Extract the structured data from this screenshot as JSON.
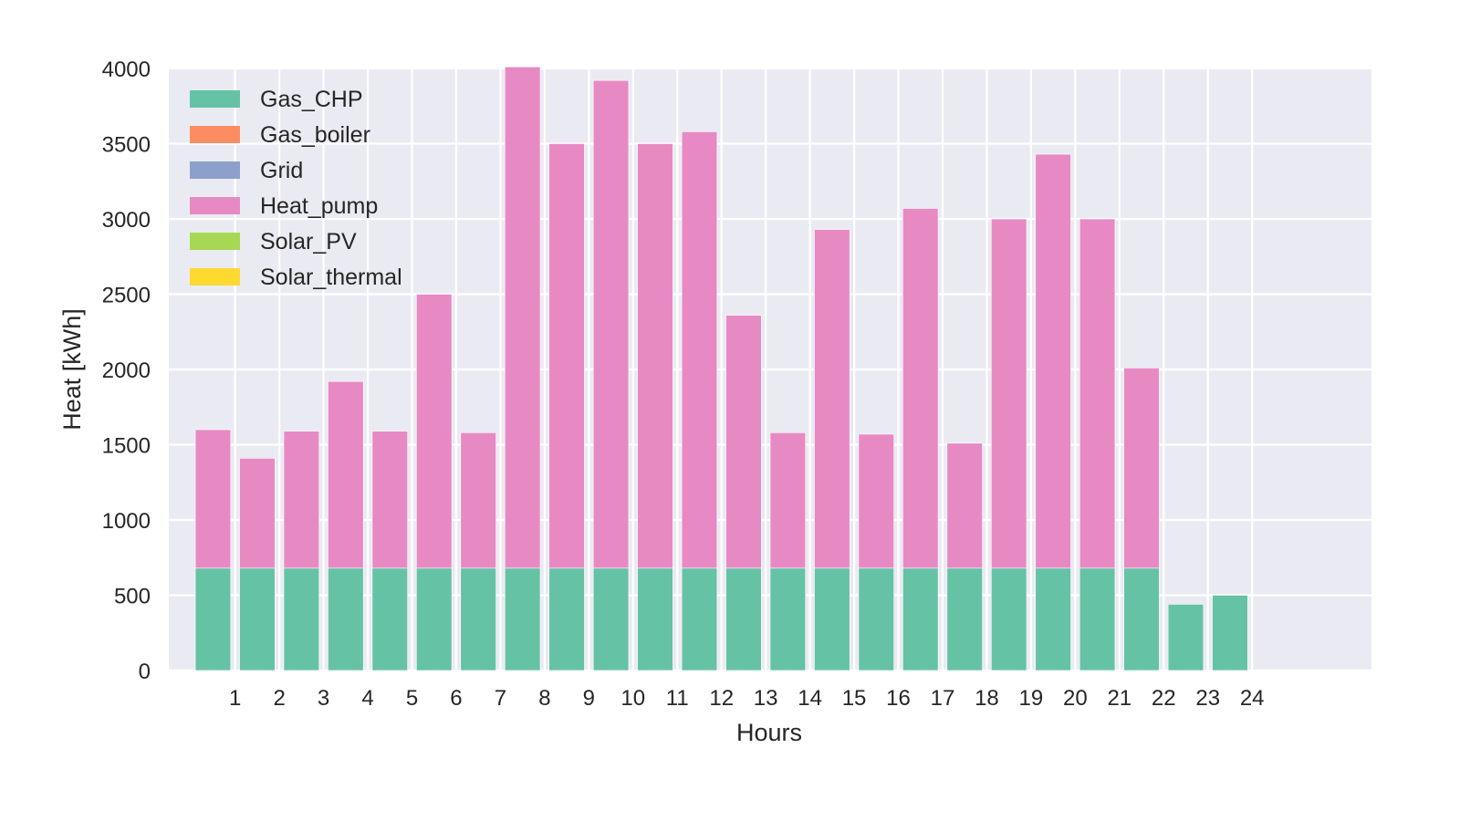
{
  "chart_data": {
    "type": "bar",
    "stacked": true,
    "xlabel": "Hours",
    "ylabel": "Heat [kWh]",
    "categories": [
      "1",
      "2",
      "3",
      "4",
      "5",
      "6",
      "7",
      "8",
      "9",
      "10",
      "11",
      "12",
      "13",
      "14",
      "15",
      "16",
      "17",
      "18",
      "19",
      "20",
      "21",
      "22",
      "23",
      "24"
    ],
    "ylim": [
      0,
      4000
    ],
    "yticks": [
      0,
      500,
      1000,
      1500,
      2000,
      2500,
      3000,
      3500,
      4000
    ],
    "grid": true,
    "background": "#eaeaf2",
    "legend_position": "top-left",
    "series": [
      {
        "name": "Gas_CHP",
        "color": "#66c2a5",
        "values": [
          680,
          680,
          680,
          680,
          680,
          680,
          680,
          680,
          680,
          680,
          680,
          680,
          680,
          680,
          680,
          680,
          680,
          680,
          680,
          680,
          680,
          680,
          440,
          500
        ]
      },
      {
        "name": "Gas_boiler",
        "color": "#fc8d62",
        "values": [
          0,
          0,
          0,
          0,
          0,
          0,
          0,
          0,
          0,
          0,
          0,
          0,
          0,
          0,
          0,
          0,
          0,
          0,
          0,
          0,
          0,
          0,
          0,
          0
        ]
      },
      {
        "name": "Grid",
        "color": "#8da0cb",
        "values": [
          0,
          0,
          0,
          0,
          0,
          0,
          0,
          0,
          0,
          0,
          0,
          0,
          0,
          0,
          0,
          0,
          0,
          0,
          0,
          0,
          0,
          0,
          0,
          0
        ]
      },
      {
        "name": "Heat_pump",
        "color": "#e78ac3",
        "values": [
          920,
          730,
          910,
          1240,
          910,
          1820,
          900,
          3330,
          2820,
          3240,
          2820,
          2900,
          1680,
          900,
          2250,
          890,
          2390,
          830,
          2320,
          2750,
          2320,
          1330,
          0,
          0
        ]
      },
      {
        "name": "Solar_PV",
        "color": "#a6d854",
        "values": [
          0,
          0,
          0,
          0,
          0,
          0,
          0,
          0,
          0,
          0,
          0,
          0,
          0,
          0,
          0,
          0,
          0,
          0,
          0,
          0,
          0,
          0,
          0,
          0
        ]
      },
      {
        "name": "Solar_thermal",
        "color": "#ffd92f",
        "values": [
          0,
          0,
          0,
          0,
          0,
          0,
          0,
          0,
          0,
          0,
          0,
          0,
          0,
          0,
          0,
          0,
          0,
          0,
          0,
          0,
          0,
          0,
          0,
          0
        ]
      }
    ]
  }
}
